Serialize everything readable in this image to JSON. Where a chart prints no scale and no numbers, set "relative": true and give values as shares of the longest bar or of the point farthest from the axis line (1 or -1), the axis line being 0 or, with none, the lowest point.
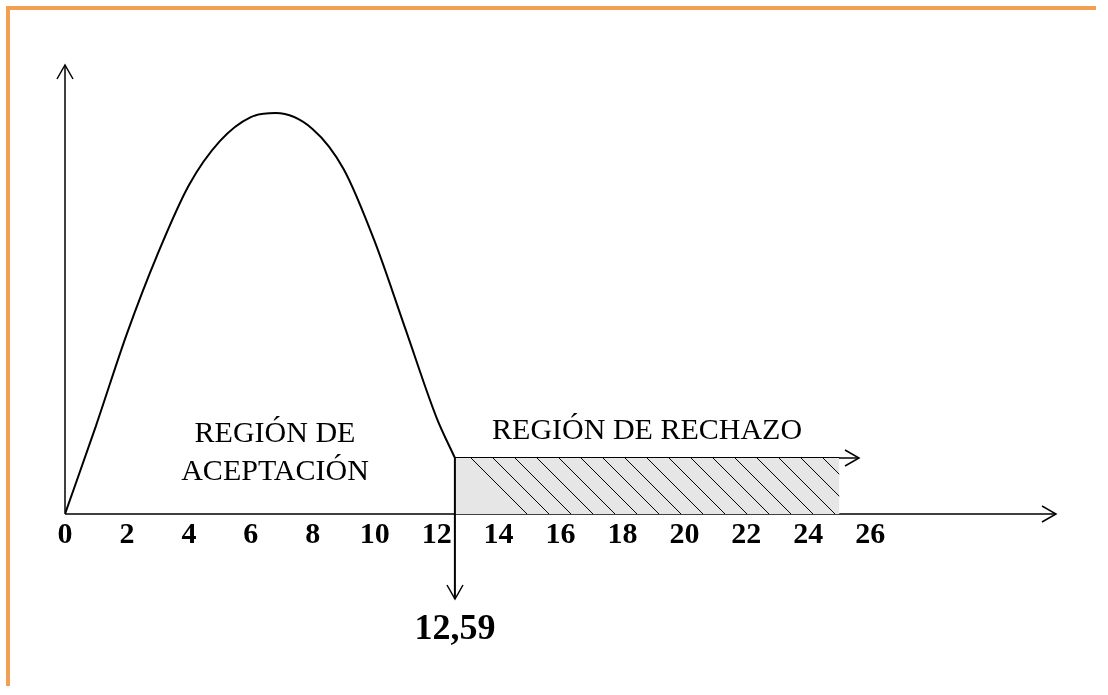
{
  "chart_data": {
    "type": "line",
    "relative": true,
    "x": [
      0,
      1,
      2,
      3,
      4,
      5,
      6,
      6.8,
      8,
      9,
      10,
      11,
      12,
      12.59
    ],
    "series": [
      {
        "color": "#000000",
        "values": [
          0,
          0.22,
          0.45,
          0.65,
          0.82,
          0.93,
          0.99,
          1,
          0.96,
          0.86,
          0.68,
          0.46,
          0.24,
          0.14
        ]
      },
      {
        "color": "#000000",
        "x": [
          12.59,
          25
        ],
        "values": [
          0.14,
          0.14
        ]
      }
    ],
    "xlim": [
      0,
      32
    ],
    "xticks": [
      0,
      2,
      4,
      6,
      8,
      10,
      12,
      14,
      16,
      18,
      20,
      22,
      24,
      26
    ],
    "bands": [
      {
        "axis": "x",
        "from": 12.59,
        "to": 25,
        "label": "REGIÓN DE RECHAZO"
      }
    ],
    "ref_lines": [
      {
        "axis": "x",
        "value": 12.59,
        "label": "12,59"
      }
    ],
    "annotations": [
      "REGIÓN DE ACEPTACIÓN"
    ],
    "grid": false,
    "legend": false,
    "marker": "none",
    "line_style": "solid"
  }
}
